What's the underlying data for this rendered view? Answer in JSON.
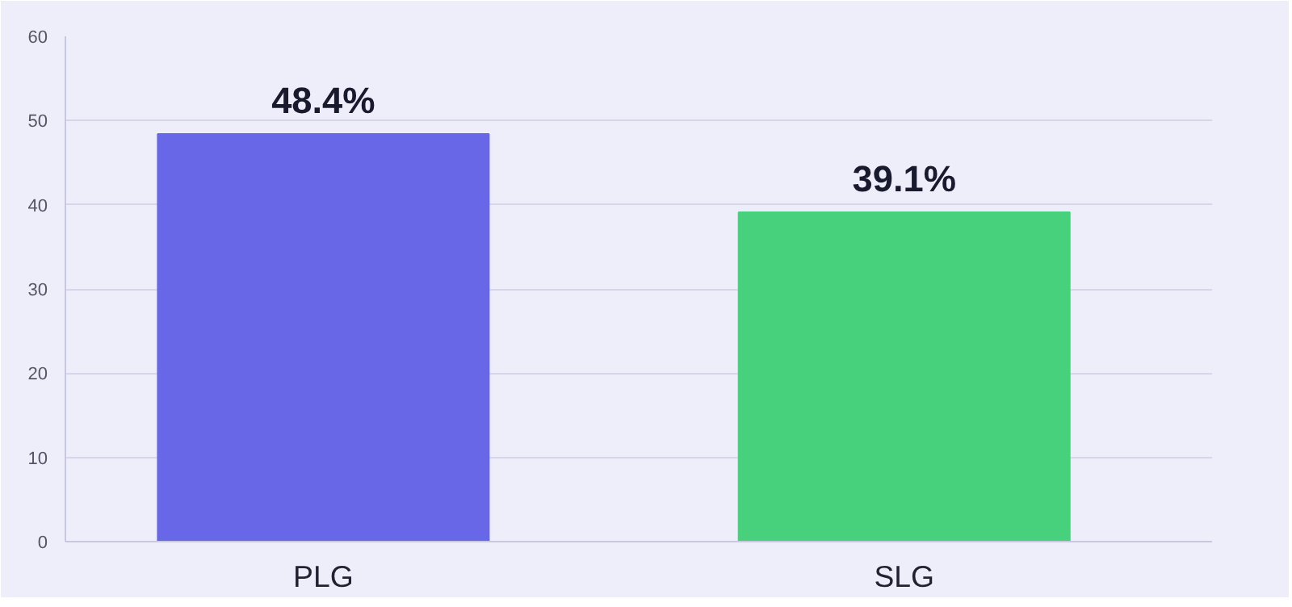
{
  "chart_data": {
    "type": "bar",
    "categories": [
      "PLG",
      "SLG"
    ],
    "values": [
      48.4,
      39.1
    ],
    "colors": [
      "#6767e8",
      "#48d17c"
    ],
    "value_labels": [
      "48.4%",
      "39.1%"
    ],
    "ylim": [
      0,
      60
    ],
    "yticks": [
      0,
      10,
      20,
      30,
      40,
      50,
      60
    ],
    "grid": "y"
  }
}
